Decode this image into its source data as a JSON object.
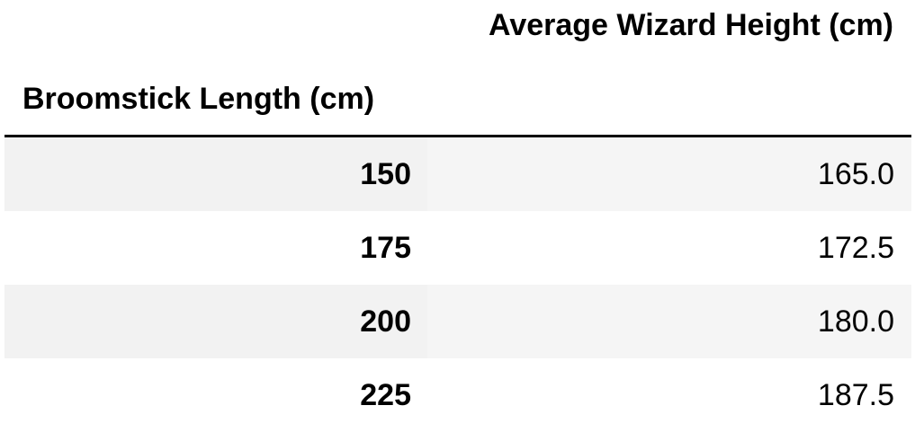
{
  "table": {
    "column_header": "Average Wizard Height (cm)",
    "index_header": "Broomstick Length (cm)",
    "rows": [
      {
        "index": "150",
        "value": "165.0"
      },
      {
        "index": "175",
        "value": "172.5"
      },
      {
        "index": "200",
        "value": "180.0"
      },
      {
        "index": "225",
        "value": "187.5"
      }
    ]
  },
  "chart_data": {
    "type": "table",
    "columns": [
      "Average Wizard Height (cm)"
    ],
    "index_name": "Broomstick Length (cm)",
    "index": [
      150,
      175,
      200,
      225
    ],
    "values": [
      165.0,
      172.5,
      180.0,
      187.5
    ]
  }
}
